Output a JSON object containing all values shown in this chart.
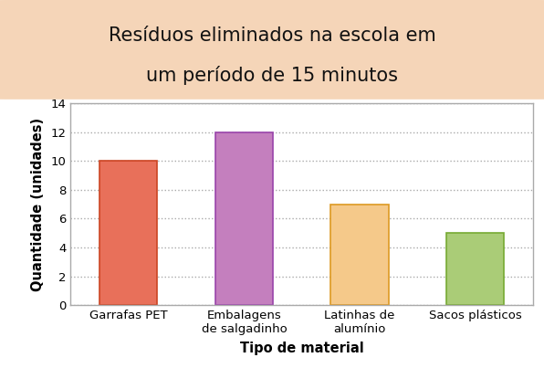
{
  "title_line1": "Resíduos eliminados na escola em",
  "title_line2": "um período de 15 minutos",
  "xlabel": "Tipo de material",
  "ylabel": "Quantidade (unidades)",
  "categories": [
    "Garrafas PET",
    "Embalagens\nde salgadinho",
    "Latinhas de\nalumínio",
    "Sacos plásticos"
  ],
  "values": [
    10,
    12,
    7,
    5
  ],
  "bar_colors": [
    "#E8705A",
    "#C47FBE",
    "#F5C98A",
    "#AACC77"
  ],
  "bar_edgecolors": [
    "#CC4422",
    "#9944AA",
    "#DD9922",
    "#77AA33"
  ],
  "ylim": [
    0,
    14
  ],
  "yticks": [
    0,
    2,
    4,
    6,
    8,
    10,
    12,
    14
  ],
  "title_bg_color": "#F5D5B8",
  "chart_bg_color": "#FFFFFF",
  "chart_border_color": "#AAAAAA",
  "figure_bg_color": "#FFFFFF",
  "title_fontsize": 15,
  "axis_label_fontsize": 10.5,
  "tick_fontsize": 9.5,
  "grid_color": "#AAAAAA",
  "grid_linestyle": ":",
  "grid_linewidth": 1.0,
  "bar_width": 0.5
}
